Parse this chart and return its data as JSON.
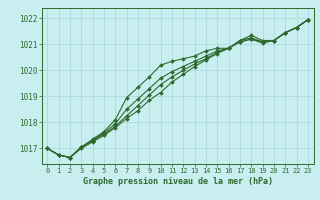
{
  "title": "Graphe pression niveau de la mer (hPa)",
  "xlabel_hours": [
    0,
    1,
    2,
    3,
    4,
    5,
    6,
    7,
    8,
    9,
    10,
    11,
    12,
    13,
    14,
    15,
    16,
    17,
    18,
    19,
    20,
    21,
    22,
    23
  ],
  "ylim": [
    1016.4,
    1022.4
  ],
  "yticks": [
    1017,
    1018,
    1019,
    1020,
    1021,
    1022
  ],
  "background_color": "#c8eef0",
  "grid_color": "#b0dde0",
  "line_color": "#2d6a2d",
  "series1": [
    1017.0,
    1016.75,
    1016.65,
    1017.0,
    1017.25,
    1017.5,
    1017.8,
    1018.15,
    1018.45,
    1018.85,
    1019.15,
    1019.55,
    1019.85,
    1020.15,
    1020.4,
    1020.65,
    1020.85,
    1021.1,
    1021.2,
    1021.1,
    1021.15,
    1021.45,
    1021.65,
    1021.95
  ],
  "series2": [
    1017.0,
    1016.75,
    1016.65,
    1017.05,
    1017.35,
    1017.65,
    1018.1,
    1018.95,
    1019.35,
    1019.75,
    1020.2,
    1020.35,
    1020.45,
    1020.55,
    1020.75,
    1020.85,
    1020.85,
    1021.15,
    1021.35,
    1021.15,
    1021.15,
    1021.45,
    1021.65,
    1021.95
  ],
  "series3": [
    1017.0,
    1016.75,
    1016.65,
    1017.05,
    1017.3,
    1017.6,
    1017.95,
    1018.5,
    1018.9,
    1019.3,
    1019.7,
    1019.95,
    1020.15,
    1020.35,
    1020.55,
    1020.75,
    1020.85,
    1021.15,
    1021.25,
    1021.1,
    1021.15,
    1021.45,
    1021.65,
    1021.95
  ],
  "series4": [
    1017.0,
    1016.75,
    1016.65,
    1017.05,
    1017.3,
    1017.55,
    1017.85,
    1018.25,
    1018.65,
    1019.05,
    1019.45,
    1019.75,
    1020.0,
    1020.25,
    1020.45,
    1020.7,
    1020.85,
    1021.1,
    1021.2,
    1021.05,
    1021.15,
    1021.45,
    1021.65,
    1021.95
  ]
}
